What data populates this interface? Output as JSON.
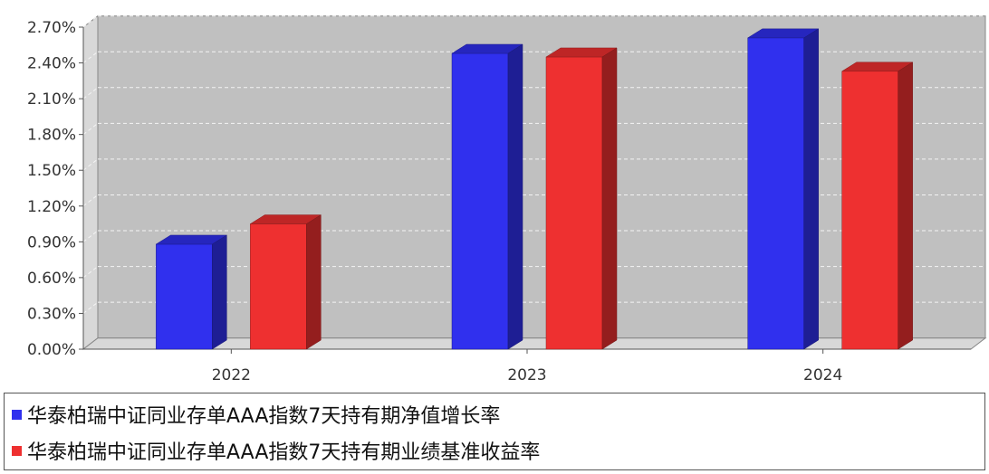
{
  "chart_data": {
    "type": "bar",
    "categories": [
      "2022",
      "2023",
      "2024"
    ],
    "series": [
      {
        "name": "华泰柏瑞中证同业存单AAA指数7天持有期净值增长率",
        "color": "#3030ee",
        "values": [
          0.88,
          2.48,
          2.61
        ]
      },
      {
        "name": "华泰柏瑞中证同业存单AAA指数7天持有期业绩基准收益率",
        "color": "#ee3030",
        "values": [
          1.05,
          2.45,
          2.33
        ]
      }
    ],
    "y_ticks": [
      "0.00%",
      "0.30%",
      "0.60%",
      "0.90%",
      "1.20%",
      "1.50%",
      "1.80%",
      "2.10%",
      "2.40%",
      "2.70%"
    ],
    "ylim": [
      0,
      2.7
    ],
    "grid": true,
    "legend_position": "bottom",
    "plot_background": "#c0c0c0"
  }
}
